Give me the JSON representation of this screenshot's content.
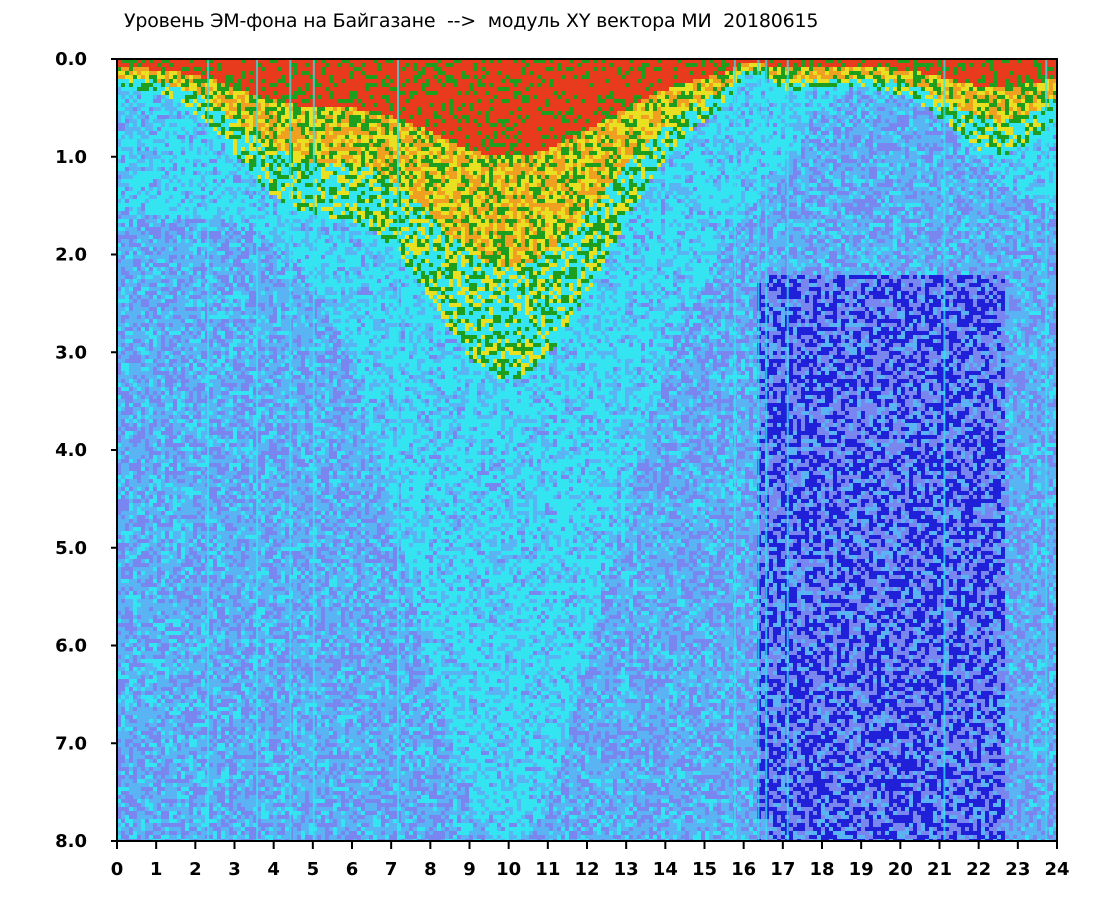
{
  "chart_data": {
    "type": "heatmap",
    "title": "Уровень ЭМ-фона на Байгазане  -->  модуль XY вектора МИ  20180615",
    "xlabel": "",
    "ylabel": "",
    "xlim": [
      0,
      24
    ],
    "ylim": [
      0,
      8
    ],
    "y_inverted": true,
    "x_ticks": [
      "0",
      "1",
      "2",
      "3",
      "4",
      "5",
      "6",
      "7",
      "8",
      "9",
      "10",
      "11",
      "12",
      "13",
      "14",
      "15",
      "16",
      "17",
      "18",
      "19",
      "20",
      "21",
      "22",
      "23",
      "24"
    ],
    "y_ticks": [
      "0.0",
      "1.0",
      "2.0",
      "3.0",
      "4.0",
      "5.0",
      "6.0",
      "7.0",
      "8.0"
    ],
    "grid": false,
    "legend": "none",
    "colors": {
      "red": "#e83a1c",
      "orange": "#f0a020",
      "yellow": "#e8e020",
      "green": "#1e9e1e",
      "cyan": "#34e4f0",
      "light_blue": "#5ab4f4",
      "periwinkle": "#7a86f0",
      "blue": "#2020d8",
      "frame": "#000000",
      "background": "#ffffff"
    }
  }
}
